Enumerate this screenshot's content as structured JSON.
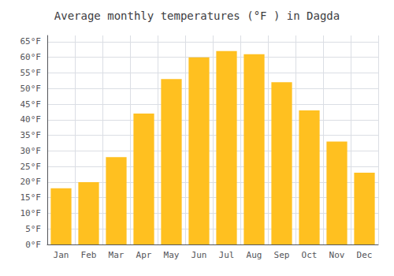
{
  "chart_data": {
    "type": "bar",
    "title": "Average monthly temperatures (°F ) in Dagda",
    "categories": [
      "Jan",
      "Feb",
      "Mar",
      "Apr",
      "May",
      "Jun",
      "Jul",
      "Aug",
      "Sep",
      "Oct",
      "Nov",
      "Dec"
    ],
    "values": [
      18,
      20,
      28,
      42,
      53,
      60,
      62,
      61,
      52,
      43,
      33,
      23
    ],
    "color": "#FFC020",
    "ylim": [
      0,
      67
    ],
    "yticks": [
      {
        "value": 0,
        "label": "0°F"
      },
      {
        "value": 5,
        "label": "5°F"
      },
      {
        "value": 10,
        "label": "10°F"
      },
      {
        "value": 15,
        "label": "15°F"
      },
      {
        "value": 20,
        "label": "20°F"
      },
      {
        "value": 25,
        "label": "25°F"
      },
      {
        "value": 30,
        "label": "30°F"
      },
      {
        "value": 35,
        "label": "35°F"
      },
      {
        "value": 40,
        "label": "40°F"
      },
      {
        "value": 45,
        "label": "45°F"
      },
      {
        "value": 50,
        "label": "50°F"
      },
      {
        "value": 55,
        "label": "55°F"
      },
      {
        "value": 60,
        "label": "60°F"
      },
      {
        "value": 65,
        "label": "65°F"
      }
    ],
    "grid": true
  }
}
